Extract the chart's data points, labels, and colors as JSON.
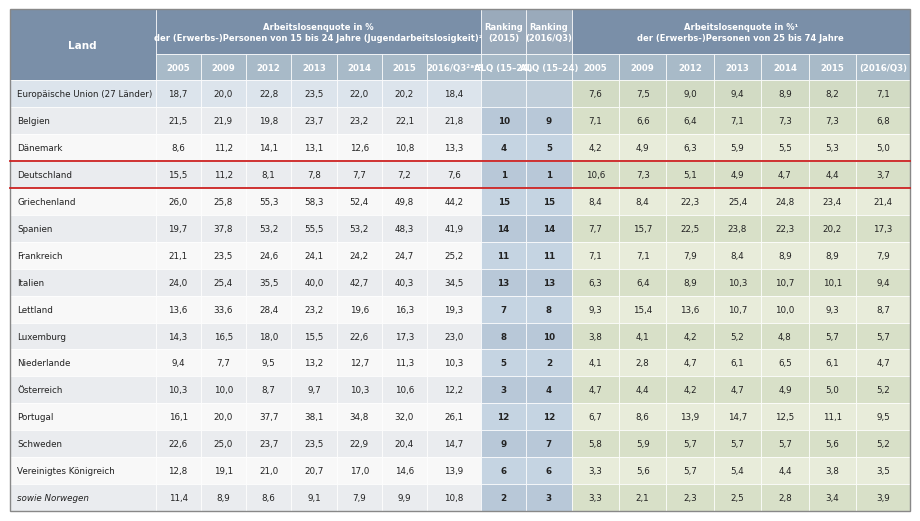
{
  "rows": [
    {
      "land": "Europäische Union (27 Länder)",
      "vals": [
        "18,7",
        "20,0",
        "22,8",
        "23,5",
        "22,0",
        "20,2",
        "18,4",
        "",
        "",
        "7,6",
        "7,5",
        "9,0",
        "9,4",
        "8,9",
        "8,2",
        "7,1"
      ],
      "highlight": false,
      "italic": false
    },
    {
      "land": "Belgien",
      "vals": [
        "21,5",
        "21,9",
        "19,8",
        "23,7",
        "23,2",
        "22,1",
        "21,8",
        "10",
        "9",
        "7,1",
        "6,6",
        "6,4",
        "7,1",
        "7,3",
        "7,3",
        "6,8"
      ],
      "highlight": false,
      "italic": false
    },
    {
      "land": "Dänemark",
      "vals": [
        "8,6",
        "11,2",
        "14,1",
        "13,1",
        "12,6",
        "10,8",
        "13,3",
        "4",
        "5",
        "4,2",
        "4,9",
        "6,3",
        "5,9",
        "5,5",
        "5,3",
        "5,0"
      ],
      "highlight": false,
      "italic": false
    },
    {
      "land": "Deutschland",
      "vals": [
        "15,5",
        "11,2",
        "8,1",
        "7,8",
        "7,7",
        "7,2",
        "7,6",
        "1",
        "1",
        "10,6",
        "7,3",
        "5,1",
        "4,9",
        "4,7",
        "4,4",
        "3,7"
      ],
      "highlight": true,
      "italic": false
    },
    {
      "land": "Griechenland",
      "vals": [
        "26,0",
        "25,8",
        "55,3",
        "58,3",
        "52,4",
        "49,8",
        "44,2",
        "15",
        "15",
        "8,4",
        "8,4",
        "22,3",
        "25,4",
        "24,8",
        "23,4",
        "21,4"
      ],
      "highlight": false,
      "italic": false
    },
    {
      "land": "Spanien",
      "vals": [
        "19,7",
        "37,8",
        "53,2",
        "55,5",
        "53,2",
        "48,3",
        "41,9",
        "14",
        "14",
        "7,7",
        "15,7",
        "22,5",
        "23,8",
        "22,3",
        "20,2",
        "17,3"
      ],
      "highlight": false,
      "italic": false
    },
    {
      "land": "Frankreich",
      "vals": [
        "21,1",
        "23,5",
        "24,6",
        "24,1",
        "24,2",
        "24,7",
        "25,2",
        "11",
        "11",
        "7,1",
        "7,1",
        "7,9",
        "8,4",
        "8,9",
        "8,9",
        "7,9"
      ],
      "highlight": false,
      "italic": false
    },
    {
      "land": "Italien",
      "vals": [
        "24,0",
        "25,4",
        "35,5",
        "40,0",
        "42,7",
        "40,3",
        "34,5",
        "13",
        "13",
        "6,3",
        "6,4",
        "8,9",
        "10,3",
        "10,7",
        "10,1",
        "9,4"
      ],
      "highlight": false,
      "italic": false
    },
    {
      "land": "Lettland",
      "vals": [
        "13,6",
        "33,6",
        "28,4",
        "23,2",
        "19,6",
        "16,3",
        "19,3",
        "7",
        "8",
        "9,3",
        "15,4",
        "13,6",
        "10,7",
        "10,0",
        "9,3",
        "8,7"
      ],
      "highlight": false,
      "italic": false
    },
    {
      "land": "Luxemburg",
      "vals": [
        "14,3",
        "16,5",
        "18,0",
        "15,5",
        "22,6",
        "17,3",
        "23,0",
        "8",
        "10",
        "3,8",
        "4,1",
        "4,2",
        "5,2",
        "4,8",
        "5,7",
        "5,7"
      ],
      "highlight": false,
      "italic": false
    },
    {
      "land": "Niederlande",
      "vals": [
        "9,4",
        "7,7",
        "9,5",
        "13,2",
        "12,7",
        "11,3",
        "10,3",
        "5",
        "2",
        "4,1",
        "2,8",
        "4,7",
        "6,1",
        "6,5",
        "6,1",
        "4,7"
      ],
      "highlight": false,
      "italic": false
    },
    {
      "land": "Österreich",
      "vals": [
        "10,3",
        "10,0",
        "8,7",
        "9,7",
        "10,3",
        "10,6",
        "12,2",
        "3",
        "4",
        "4,7",
        "4,4",
        "4,2",
        "4,7",
        "4,9",
        "5,0",
        "5,2"
      ],
      "highlight": false,
      "italic": false
    },
    {
      "land": "Portugal",
      "vals": [
        "16,1",
        "20,0",
        "37,7",
        "38,1",
        "34,8",
        "32,0",
        "26,1",
        "12",
        "12",
        "6,7",
        "8,6",
        "13,9",
        "14,7",
        "12,5",
        "11,1",
        "9,5"
      ],
      "highlight": false,
      "italic": false
    },
    {
      "land": "Schweden",
      "vals": [
        "22,6",
        "25,0",
        "23,7",
        "23,5",
        "22,9",
        "20,4",
        "14,7",
        "9",
        "7",
        "5,8",
        "5,9",
        "5,7",
        "5,7",
        "5,7",
        "5,6",
        "5,2"
      ],
      "highlight": false,
      "italic": false
    },
    {
      "land": "Vereinigtes Königreich",
      "vals": [
        "12,8",
        "19,1",
        "21,0",
        "20,7",
        "17,0",
        "14,6",
        "13,9",
        "6",
        "6",
        "3,3",
        "5,6",
        "5,7",
        "5,4",
        "4,4",
        "3,8",
        "3,5"
      ],
      "highlight": false,
      "italic": false
    },
    {
      "land": "sowie Norwegen",
      "vals": [
        "11,4",
        "8,9",
        "8,6",
        "9,1",
        "7,9",
        "9,9",
        "10,8",
        "2",
        "3",
        "3,3",
        "2,1",
        "2,3",
        "2,5",
        "2,8",
        "3,4",
        "3,9"
      ],
      "highlight": false,
      "italic": true
    }
  ],
  "col_widths_raw": [
    1.35,
    0.42,
    0.42,
    0.42,
    0.42,
    0.42,
    0.42,
    0.5,
    0.42,
    0.42,
    0.44,
    0.44,
    0.44,
    0.44,
    0.44,
    0.44,
    0.5
  ],
  "header1_youth": "Arbeitslosenquote in %\nder (Erwerbs-)Personen von 15 bis 24 Jahre (Jugendarbeitslosigkeit)²",
  "header1_ranking1": "Ranking\n(2015)",
  "header1_ranking2": "Ranking\n(2016/Q3)",
  "header1_adult": "Arbeitslosenquote in %¹\nder (Erwerbs-)Personen von 25 bis 74 Jahre",
  "year_labels_youth": [
    "2005",
    "2009",
    "2012",
    "2013",
    "2014",
    "2015",
    "2016/Q3²ᵃᵛ⁵"
  ],
  "alq_labels": [
    "ALQ (15–24)",
    "ALQ (15–24)"
  ],
  "year_labels_adult": [
    "2005",
    "2009",
    "2012",
    "2013",
    "2014",
    "2015",
    "(2016/Q3)"
  ],
  "colors": {
    "header_dark": "#7a8fa8",
    "header_mid": "#9aaabb",
    "subheader": "#a8bac8",
    "land_label": "#3a3a3a",
    "row_white_left": "#f8f8f8",
    "row_light_left": "#eaecef",
    "row_white_rank": "#c5d4e2",
    "row_light_rank": "#b8c8d8",
    "row_white_right": "#e8ecda",
    "row_light_right": "#d8e0c8",
    "eu_left": "#dce4ec",
    "eu_rank": "#c0ceda",
    "eu_right": "#d2dbc4",
    "highlight_red": "#cc2222",
    "border_outer": "#888888",
    "cell_border": "#ffffff",
    "text_dark": "#222222",
    "text_white": "#ffffff",
    "text_rank": "#222222"
  },
  "fontsize_header": 6.0,
  "fontsize_subheader": 6.2,
  "fontsize_data": 6.3,
  "fontsize_land": 6.3,
  "fontsize_land_label": 7.5
}
